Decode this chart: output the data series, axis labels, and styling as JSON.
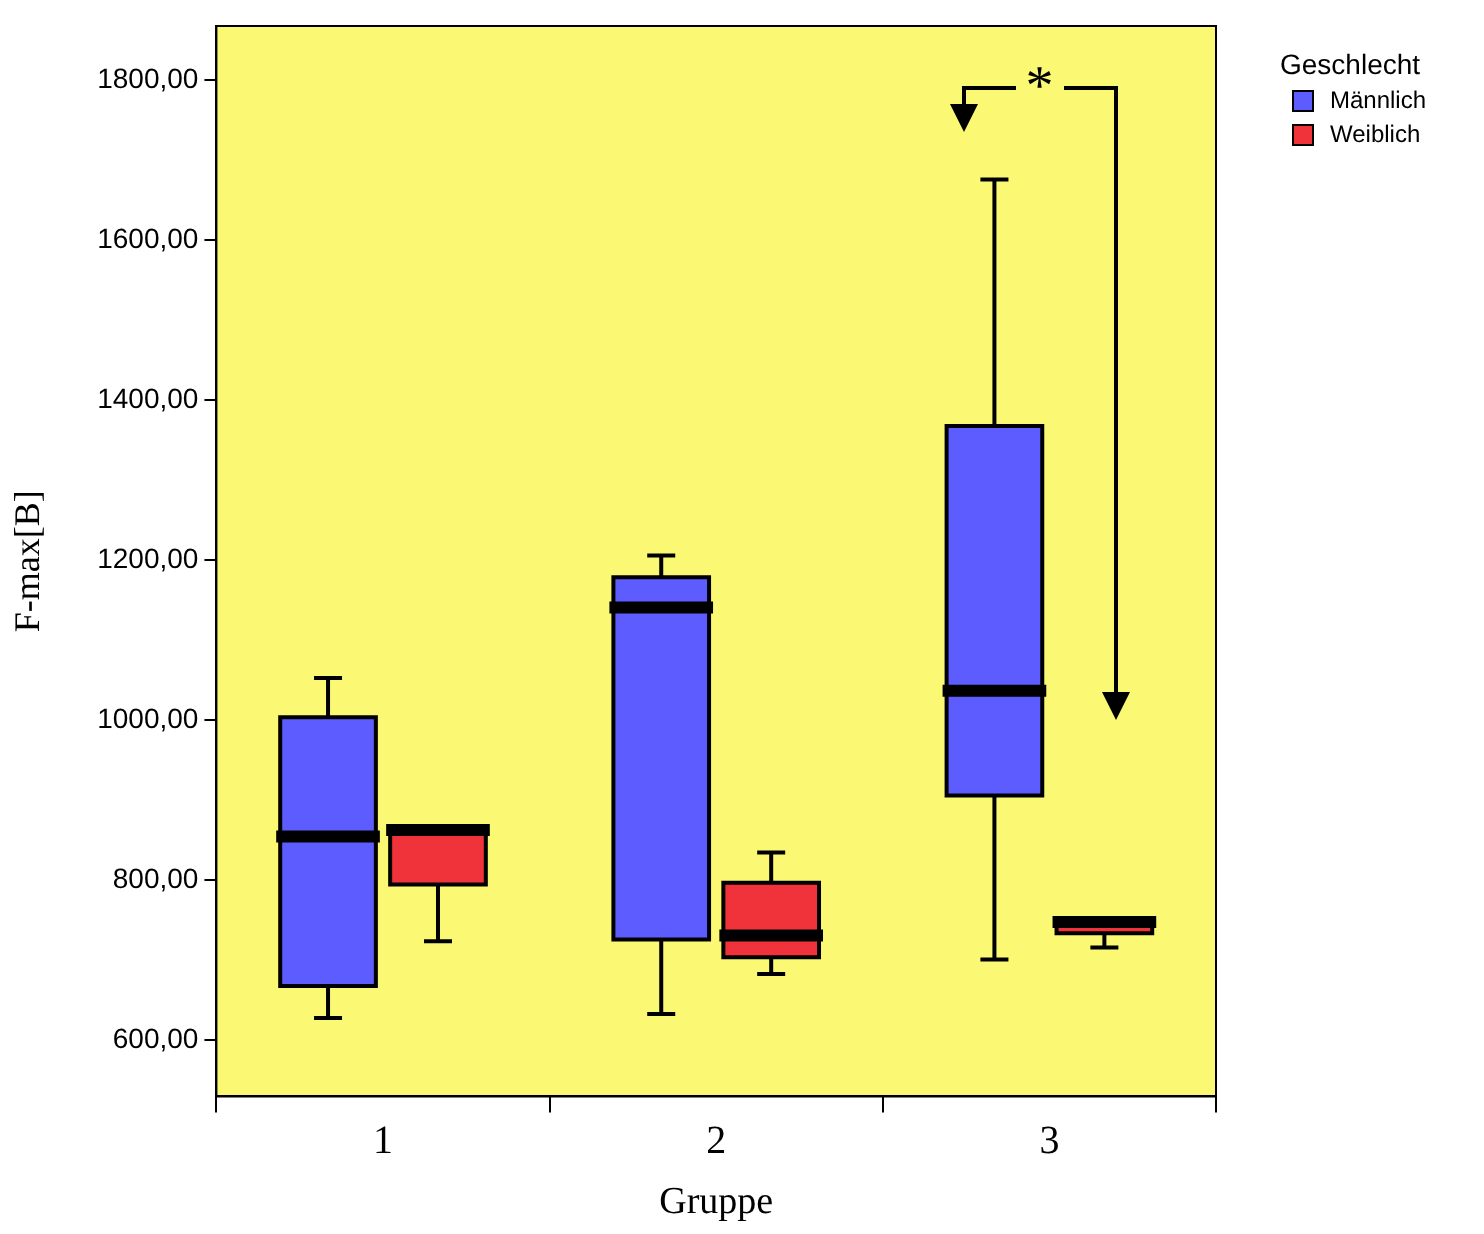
{
  "chart_data": {
    "type": "box",
    "xlabel": "Gruppe",
    "ylabel": "F-max[B]",
    "legend_title": "Geschlecht",
    "legend": "top right",
    "grid": false,
    "categories": [
      "1",
      "2",
      "3"
    ],
    "ylim": [
      530,
      1868
    ],
    "yticks": [
      {
        "value": 600,
        "label": "600,00"
      },
      {
        "value": 800,
        "label": "800,00"
      },
      {
        "value": 1000,
        "label": "1000,00"
      },
      {
        "value": 1200,
        "label": "1200,00"
      },
      {
        "value": 1400,
        "label": "1400,00"
      },
      {
        "value": 1600,
        "label": "1600,00"
      },
      {
        "value": 1800,
        "label": "1800,00"
      }
    ],
    "annotations": [
      "*"
    ],
    "series": [
      {
        "name": "Männlich",
        "color": "#5c5cff",
        "boxes": [
          {
            "low": 628,
            "q1": 668,
            "median": 855,
            "q3": 1004,
            "high": 1053
          },
          {
            "low": 633,
            "q1": 726,
            "median": 1141,
            "q3": 1179,
            "high": 1206
          },
          {
            "low": 701,
            "q1": 906,
            "median": 1037,
            "q3": 1368,
            "high": 1676
          }
        ]
      },
      {
        "name": "Weiblich",
        "color": "#f0323a",
        "boxes": [
          {
            "low": 724,
            "q1": 795,
            "median": 863,
            "q3": 865,
            "high": 865
          },
          {
            "low": 683,
            "q1": 704,
            "median": 731,
            "q3": 797,
            "high": 835
          },
          {
            "low": 716,
            "q1": 734,
            "median": 748,
            "q3": 752,
            "high": 752
          }
        ]
      }
    ]
  }
}
